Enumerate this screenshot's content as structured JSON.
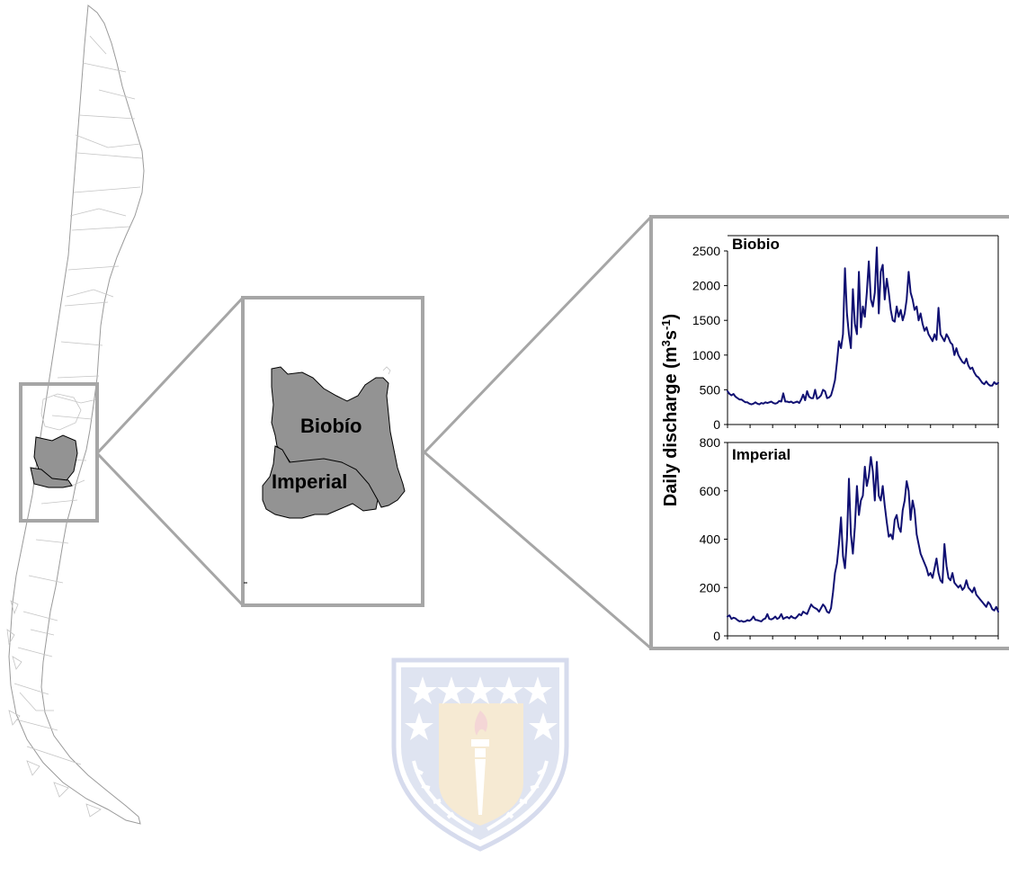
{
  "map": {
    "labels": [
      "Biobío",
      "Imperial"
    ]
  },
  "colors": {
    "series_line": "#101072",
    "basin_fill": "#939393",
    "frame_stroke": "#a6a6a6",
    "logo_blue": "#8fa0cf",
    "logo_gold": "#e0b565",
    "logo_red": "#d96e6e"
  },
  "logo": {
    "type": "university-shield-watermark",
    "icons": [
      "star-icon",
      "torch-icon",
      "laurel-icon"
    ]
  },
  "chart_data": {
    "type": "line",
    "ylabel_text": "Daily discharge (m",
    "ylabel_sup1": "3",
    "ylabel_mid": "s",
    "ylabel_sup2": "-1",
    "ylabel_end": ")",
    "grid": false,
    "x_tick_count": 12,
    "panels": [
      {
        "name": "Biobio",
        "ylim": [
          0,
          2500
        ],
        "yticks": [
          "0",
          "500",
          "1000",
          "1500",
          "2000",
          "2500"
        ],
        "ytick_values": [
          0,
          500,
          1000,
          1500,
          2000,
          2500
        ],
        "series": [
          {
            "values": [
              480,
              440,
              420,
              440,
              400,
              380,
              360,
              360,
              340,
              320,
              320,
              300,
              290,
              300,
              320,
              300,
              290,
              310,
              300,
              320,
              310,
              320,
              330,
              310,
              300,
              310,
              340,
              330,
              450,
              330,
              330,
              320,
              330,
              310,
              320,
              330,
              310,
              360,
              430,
              350,
              480,
              400,
              380,
              380,
              500,
              370,
              390,
              420,
              500,
              480,
              380,
              390,
              420,
              520,
              640,
              900,
              1200,
              1100,
              1300,
              2250,
              1600,
              1300,
              1100,
              1950,
              1450,
              1300,
              2200,
              1400,
              1700,
              1550,
              1900,
              2350,
              1800,
              1700,
              1900,
              2550,
              1600,
              2200,
              2300,
              1800,
              2100,
              1900,
              1650,
              1500,
              1480,
              1700,
              1550,
              1650,
              1500,
              1600,
              1800,
              2200,
              1900,
              1800,
              1650,
              1700,
              1500,
              1600,
              1450,
              1350,
              1400,
              1300,
              1250,
              1200,
              1300,
              1220,
              1680,
              1300,
              1250,
              1200,
              1300,
              1250,
              1180,
              1150,
              1000,
              1100,
              1000,
              950,
              900,
              880,
              950,
              850,
              800,
              820,
              750,
              700,
              680,
              640,
              600,
              580,
              620,
              580,
              560,
              560,
              610,
              580,
              600
            ]
          }
        ]
      },
      {
        "name": "Imperial",
        "ylim": [
          0,
          800
        ],
        "yticks": [
          "0",
          "200",
          "400",
          "600",
          "800"
        ],
        "ytick_values": [
          0,
          200,
          400,
          600,
          800
        ],
        "series": [
          {
            "values": [
              80,
              85,
              70,
              75,
              72,
              65,
              60,
              62,
              58,
              60,
              65,
              62,
              68,
              80,
              66,
              65,
              62,
              60,
              68,
              72,
              90,
              70,
              68,
              72,
              80,
              70,
              75,
              90,
              70,
              75,
              78,
              72,
              82,
              75,
              72,
              80,
              90,
              85,
              100,
              95,
              90,
              110,
              130,
              120,
              115,
              110,
              100,
              115,
              130,
              120,
              100,
              95,
              115,
              180,
              260,
              300,
              380,
              490,
              330,
              280,
              400,
              650,
              420,
              340,
              450,
              620,
              500,
              560,
              580,
              700,
              620,
              660,
              740,
              680,
              560,
              720,
              580,
              560,
              620,
              540,
              470,
              410,
              420,
              400,
              480,
              500,
              450,
              430,
              520,
              560,
              640,
              600,
              480,
              560,
              520,
              420,
              380,
              340,
              320,
              300,
              280,
              250,
              260,
              240,
              280,
              320,
              260,
              230,
              220,
              380,
              290,
              240,
              230,
              260,
              220,
              210,
              200,
              210,
              190,
              200,
              230,
              200,
              190,
              180,
              200,
              170,
              160,
              150,
              140,
              130,
              120,
              140,
              130,
              110,
              105,
              120,
              100
            ]
          }
        ]
      }
    ]
  }
}
